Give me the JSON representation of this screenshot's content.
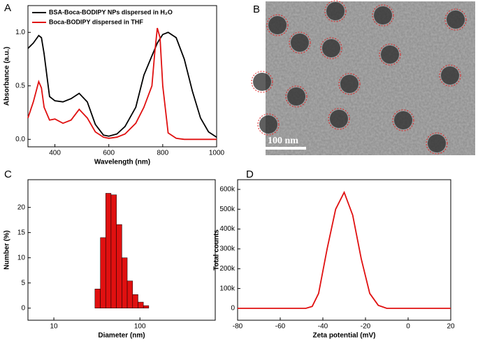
{
  "chart_data": [
    {
      "type": "line",
      "panel": "A",
      "x_label": "Wavelength (nm)",
      "y_label": "Absorbance (a.u.)",
      "x": [
        300,
        320,
        340,
        350,
        360,
        380,
        400,
        430,
        460,
        490,
        520,
        550,
        580,
        600,
        630,
        660,
        700,
        730,
        760,
        770,
        780,
        790,
        800,
        820,
        850,
        880,
        910,
        940,
        970,
        1000
      ],
      "series": [
        {
          "name": "BSA-Boca-BODIPY NPs dispersed in H₂O",
          "color": "#000000",
          "values": [
            0.85,
            0.9,
            0.97,
            0.95,
            0.8,
            0.4,
            0.36,
            0.35,
            0.38,
            0.43,
            0.35,
            0.14,
            0.04,
            0.03,
            0.05,
            0.12,
            0.3,
            0.6,
            0.78,
            0.84,
            0.9,
            0.94,
            0.98,
            1.0,
            0.95,
            0.75,
            0.45,
            0.2,
            0.07,
            0.02
          ]
        },
        {
          "name": "Boca-BODIPY dispersed in THF",
          "color": "#e01010",
          "values": [
            0.2,
            0.35,
            0.54,
            0.48,
            0.3,
            0.18,
            0.19,
            0.15,
            0.18,
            0.28,
            0.2,
            0.07,
            0.02,
            0.01,
            0.02,
            0.05,
            0.15,
            0.3,
            0.5,
            0.8,
            1.04,
            0.95,
            0.5,
            0.06,
            0.01,
            0,
            0,
            0,
            0,
            0
          ]
        }
      ],
      "xlim": [
        300,
        1000
      ],
      "xticks": [
        400,
        600,
        800,
        1000
      ],
      "ylim": [
        -0.07,
        1.25
      ],
      "yticks": [
        {
          "value": 0,
          "label": "0.0"
        },
        {
          "value": 0.5,
          "label": "0.5"
        },
        {
          "value": 1,
          "label": "1.0"
        }
      ],
      "legend": "top-left"
    },
    {
      "type": "histogram",
      "panel": "C",
      "x_label": "Diameter (nm)",
      "y_label": "Number (%)",
      "log_x": true,
      "bins": [
        30,
        34.7,
        40,
        46.2,
        53.4,
        61.7,
        71.2,
        82.3,
        95,
        109.7,
        126.7
      ],
      "values": [
        3.8,
        14,
        22.8,
        22.5,
        16.6,
        10,
        5.4,
        2.7,
        1.2,
        0.5
      ],
      "color": "#e01010",
      "xlim": [
        5,
        750
      ],
      "xticks": [
        10,
        100
      ],
      "ylim": [
        -2.4,
        25.5
      ],
      "yticks": [
        0,
        5,
        10,
        15,
        20
      ]
    },
    {
      "type": "line",
      "panel": "D",
      "x_label": "Zeta potential (mV)",
      "y_label": "Total counts",
      "x": [
        -80,
        -48,
        -45,
        -42,
        -38,
        -34,
        -30,
        -26,
        -22,
        -18,
        -14,
        -10,
        20
      ],
      "series": [
        {
          "color": "#e01010",
          "values": [
            0,
            0,
            10000,
            75000,
            300000,
            500000,
            585000,
            470000,
            250000,
            75000,
            15000,
            0,
            0
          ]
        }
      ],
      "xlim": [
        -80,
        20
      ],
      "xticks": [
        -80,
        -60,
        -40,
        -20,
        0,
        20
      ],
      "ylim": [
        -60000,
        649000
      ],
      "yticks": [
        0,
        {
          "value": 100000,
          "label": "100k"
        },
        {
          "value": 200000,
          "label": "200k"
        },
        {
          "value": 300000,
          "label": "300k"
        },
        {
          "value": 400000,
          "label": "400k"
        },
        {
          "value": 500000,
          "label": "500k"
        },
        {
          "value": 600000,
          "label": "600k"
        }
      ]
    }
  ],
  "image_panel": {
    "panel": "B",
    "scale_bar": "100 nm"
  }
}
